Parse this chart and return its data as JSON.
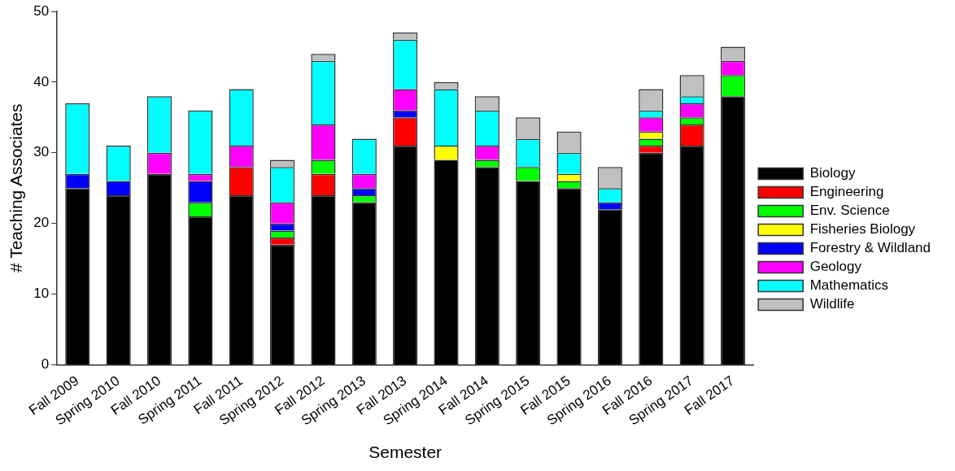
{
  "chart_data": {
    "type": "bar",
    "stacked": true,
    "xlabel": "Semester",
    "ylabel": "# Teaching Associates",
    "categories": [
      "Fall 2009",
      "Spring 2010",
      "Fall 2010",
      "Spring 2011",
      "Fall 2011",
      "Spring 2012",
      "Fall 2012",
      "Spring 2013",
      "Fall 2013",
      "Spring 2014",
      "Fall 2014",
      "Spring 2015",
      "Fall 2015",
      "Spring 2016",
      "Fall 2016",
      "Spring 2017",
      "Fall 2017"
    ],
    "series": [
      {
        "name": "Biology",
        "color": "#000000",
        "values": [
          25,
          24,
          27,
          21,
          24,
          17,
          24,
          23,
          31,
          29,
          28,
          26,
          25,
          22,
          30,
          31,
          38
        ]
      },
      {
        "name": "Engineering",
        "color": "#ff0000",
        "values": [
          0,
          0,
          0,
          0,
          4,
          1,
          3,
          0,
          4,
          0,
          0,
          0,
          0,
          0,
          1,
          3,
          0
        ]
      },
      {
        "name": "Env. Science",
        "color": "#00ff00",
        "values": [
          0,
          0,
          0,
          2,
          0,
          1,
          2,
          1,
          0,
          0,
          1,
          2,
          1,
          0,
          1,
          1,
          3
        ]
      },
      {
        "name": "Fisheries Biology",
        "color": "#ffff00",
        "values": [
          0,
          0,
          0,
          0,
          0,
          0,
          0,
          0,
          0,
          2,
          0,
          0,
          1,
          0,
          1,
          0,
          0
        ]
      },
      {
        "name": "Forestry & Wildland",
        "color": "#0000ff",
        "values": [
          2,
          2,
          0,
          3,
          0,
          1,
          0,
          1,
          1,
          0,
          0,
          0,
          0,
          1,
          0,
          0,
          0
        ]
      },
      {
        "name": "Geology",
        "color": "#ff00ff",
        "values": [
          0,
          0,
          3,
          1,
          3,
          3,
          5,
          2,
          3,
          0,
          2,
          0,
          0,
          0,
          2,
          2,
          2
        ]
      },
      {
        "name": "Mathematics",
        "color": "#00ffff",
        "values": [
          10,
          5,
          8,
          9,
          8,
          5,
          9,
          5,
          7,
          8,
          5,
          4,
          3,
          2,
          1,
          1,
          0
        ]
      },
      {
        "name": "Wildlife",
        "color": "#c0c0c0",
        "values": [
          0,
          0,
          0,
          0,
          0,
          1,
          1,
          0,
          1,
          1,
          2,
          3,
          3,
          3,
          3,
          3,
          2
        ]
      }
    ],
    "ylim": [
      0,
      50
    ],
    "yticks": [
      0,
      10,
      20,
      30,
      40,
      50
    ],
    "grid": false,
    "legend": "right"
  }
}
